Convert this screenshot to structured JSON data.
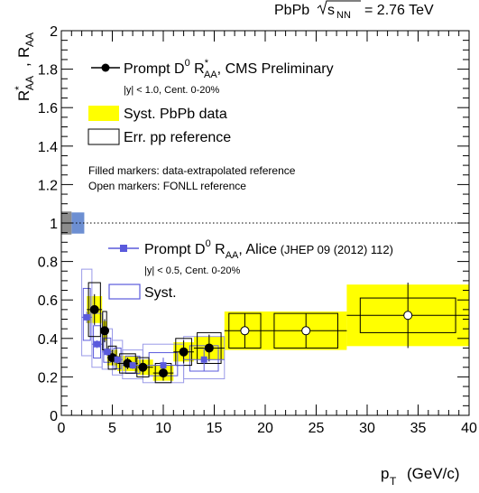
{
  "chart_data": {
    "type": "scatter",
    "header": {
      "system": "PbPb",
      "sqrt": "s",
      "sub": "NN",
      "energy": "= 2.76 TeV"
    },
    "xlabel": {
      "main": "p",
      "sub": "T",
      "unit": "(GeV/c)"
    },
    "ylabel": {
      "r1": "R",
      "s1": "AA",
      "star": "*",
      "comma": ",",
      "r2": "R",
      "s2": "AA"
    },
    "xlim": [
      0,
      40
    ],
    "ylim": [
      0,
      2
    ],
    "x_ticks": [
      "0",
      "5",
      "10",
      "15",
      "20",
      "25",
      "30",
      "35",
      "40"
    ],
    "y_ticks": [
      "0",
      "0.2",
      "0.4",
      "0.6",
      "0.8",
      "1",
      "1.2",
      "1.4",
      "1.6",
      "1.8",
      "2"
    ],
    "reference_line": 1,
    "legend_cms": {
      "entry": {
        "a": "Prompt D",
        "sup": "0",
        "b": " R",
        "star": "*",
        "sub": "AA",
        "c": ", CMS Preliminary"
      },
      "sel": "|y| < 1.0, Cent. 0-20%",
      "syst": "Syst. PbPb data",
      "err": "Err. pp reference",
      "note1": "Filled markers: data-extrapolated reference",
      "note2": "Open markers: FONLL reference"
    },
    "legend_alice": {
      "entry": {
        "a": "Prompt D",
        "sup": "0",
        "b": " R",
        "sub": "AA",
        "c": ", Alice",
        "ref": " (JHEP 09 (2012) 112)"
      },
      "sel": "|y| < 0.5, Cent. 0-20%",
      "syst": "Syst."
    },
    "series": [
      {
        "name": "Prompt D0 R*AA, CMS Preliminary",
        "marker": "filled-circle",
        "color": "#000000",
        "points": [
          {
            "x": 3.25,
            "y": 0.55,
            "xl": 2.5,
            "xh": 4.0,
            "stat": 0.08,
            "syst": 0.07,
            "pp": 0.14
          },
          {
            "x": 4.25,
            "y": 0.44,
            "xl": 4.0,
            "xh": 4.5,
            "stat": 0.06,
            "syst": 0.05,
            "pp": 0.1
          },
          {
            "x": 5.0,
            "y": 0.3,
            "xl": 4.5,
            "xh": 5.5,
            "stat": 0.04,
            "syst": 0.04,
            "pp": 0.06
          },
          {
            "x": 6.5,
            "y": 0.27,
            "xl": 5.5,
            "xh": 7.5,
            "stat": 0.03,
            "syst": 0.04,
            "pp": 0.05
          },
          {
            "x": 8.0,
            "y": 0.25,
            "xl": 7.5,
            "xh": 9.0,
            "stat": 0.04,
            "syst": 0.04,
            "pp": 0.05
          },
          {
            "x": 10.0,
            "y": 0.22,
            "xl": 9.0,
            "xh": 11.0,
            "stat": 0.04,
            "syst": 0.04,
            "pp": 0.05
          },
          {
            "x": 12.0,
            "y": 0.33,
            "xl": 11.0,
            "xh": 13.0,
            "stat": 0.06,
            "syst": 0.05,
            "pp": 0.07
          },
          {
            "x": 14.5,
            "y": 0.35,
            "xl": 13.0,
            "xh": 16.0,
            "stat": 0.07,
            "syst": 0.06,
            "pp": 0.08
          }
        ]
      },
      {
        "name": "Prompt D0 R*AA, CMS Preliminary (FONLL reference)",
        "marker": "open-circle",
        "color": "#000000",
        "points": [
          {
            "x": 18.0,
            "y": 0.44,
            "xl": 16.0,
            "xh": 20.0,
            "stat": 0.09,
            "syst": 0.1,
            "pp": 0.09
          },
          {
            "x": 24.0,
            "y": 0.44,
            "xl": 20.0,
            "xh": 28.0,
            "stat": 0.09,
            "syst": 0.1,
            "pp": 0.09
          },
          {
            "x": 34.0,
            "y": 0.52,
            "xl": 28.0,
            "xh": 40.0,
            "stat": 0.17,
            "syst": 0.16,
            "pp": 0.09
          }
        ]
      },
      {
        "name": "Prompt D0 RAA, Alice (JHEP 09 (2012) 112)",
        "marker": "filled-square",
        "color": "#5a5adc",
        "points": [
          {
            "x": 2.5,
            "y": 0.51,
            "xl": 2.0,
            "xh": 3.0,
            "stat": 0.03,
            "sh": 0.25,
            "sl": 0.2
          },
          {
            "x": 3.5,
            "y": 0.37,
            "xl": 3.0,
            "xh": 4.0,
            "stat": 0.02,
            "sh": 0.16,
            "sl": 0.12
          },
          {
            "x": 4.5,
            "y": 0.33,
            "xl": 4.0,
            "xh": 5.0,
            "stat": 0.02,
            "sh": 0.12,
            "sl": 0.09
          },
          {
            "x": 5.5,
            "y": 0.29,
            "xl": 5.0,
            "xh": 6.0,
            "stat": 0.02,
            "sh": 0.1,
            "sl": 0.08
          },
          {
            "x": 7.0,
            "y": 0.26,
            "xl": 6.0,
            "xh": 8.0,
            "stat": 0.02,
            "sh": 0.08,
            "sl": 0.07
          },
          {
            "x": 10.0,
            "y": 0.26,
            "xl": 8.0,
            "xh": 12.0,
            "stat": 0.04,
            "sh": 0.11,
            "sl": 0.09
          },
          {
            "x": 14.0,
            "y": 0.29,
            "xl": 12.0,
            "xh": 16.0,
            "stat": 0.06,
            "sh": 0.12,
            "sl": 0.1
          }
        ]
      }
    ],
    "norm_box_cms": {
      "x0": 0.0,
      "x1": 1.0,
      "y0": 0.94,
      "y1": 1.06
    },
    "norm_box_alice": {
      "x0": 1.0,
      "x1": 2.25,
      "y0": 0.945,
      "y1": 1.055
    },
    "colors": {
      "cms_syst": "#ffff00",
      "alice": "#5a5adc",
      "alice_light": "#9a9ae8",
      "norm_gray": "#8c8c8c",
      "norm_blue": "#6d8fd2"
    }
  }
}
